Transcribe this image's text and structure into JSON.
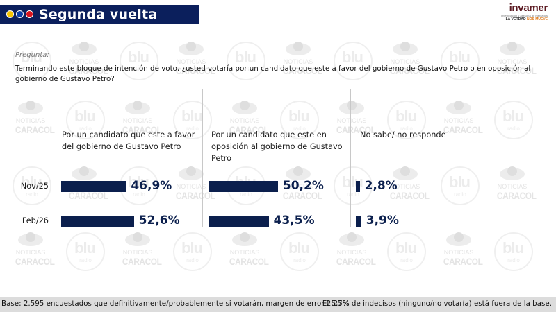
{
  "header": {
    "title": "Segunda vuelta",
    "dots": [
      {
        "name": "yellow-dot",
        "color": "#f5c400"
      },
      {
        "name": "blue-dot",
        "color": "#0b3ea8"
      },
      {
        "name": "red-dot",
        "color": "#d8141f"
      }
    ],
    "logo": {
      "name": "invamer",
      "subtitle": "investigación y asesoría de mercados",
      "tagline_a": "LA VERDAD ",
      "tagline_b": "NOS MUEVE"
    }
  },
  "question": {
    "label": "Pregunta:",
    "text": "Terminando este bloque de intención de voto, ¿usted votaría por un candidato que este a favor del gobierno de Gustavo Petro o en oposición al gobierno de Gustavo Petro?"
  },
  "watermarks": {
    "blu_text": "blu",
    "blu_sub": "radio",
    "nc_top": "NOTICIAS",
    "nc_bottom": "CARACOL"
  },
  "chart_data": {
    "type": "bar",
    "orientation": "horizontal",
    "title": "Segunda vuelta",
    "categories": [
      "Nov/25",
      "Feb/26"
    ],
    "series": [
      {
        "name": "Por un candidato que este a favor del gobierno de Gustavo Petro",
        "values": [
          46.9,
          52.6
        ],
        "labels": [
          "46,9%",
          "52,6%"
        ]
      },
      {
        "name": "Por un candidato que este en oposición al gobierno de Gustavo Petro",
        "values": [
          50.2,
          43.5
        ],
        "labels": [
          "50,2%",
          "43,5%"
        ]
      },
      {
        "name": "No sabe/ no responde",
        "values": [
          2.8,
          3.9
        ],
        "labels": [
          "2,8%",
          "3,9%"
        ]
      }
    ],
    "unit": "%",
    "xlim": [
      0,
      100
    ],
    "grid": false,
    "legend": "none",
    "bar_color": "#0b1f4d"
  },
  "footer": {
    "base": "Base: 2.595 encuestados que definitivamente/probablemente si votarán, margen de error 2,27%",
    "note": "El 5,5% de indecisos (ninguno/no votaría) está fuera de la base."
  }
}
